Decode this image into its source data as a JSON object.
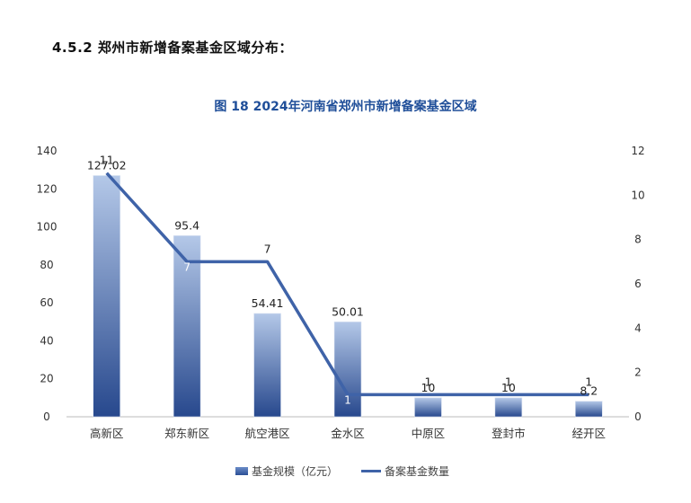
{
  "heading": "4.5.2  郑州市新增备案基金区域分布：",
  "chart_data": {
    "type": "bar",
    "title": "图 18  2024年河南省郑州市新增备案基金区域",
    "categories": [
      "高新区",
      "郑东新区",
      "航空港区",
      "金水区",
      "中原区",
      "登封市",
      "经开区"
    ],
    "series": [
      {
        "name": "基金规模（亿元）",
        "type": "bar",
        "axis": "left",
        "values": [
          127.02,
          95.4,
          54.41,
          50.01,
          10,
          10,
          8.2
        ],
        "labels": [
          "127.02",
          "95.4",
          "54.41",
          "50.01",
          "10",
          "10",
          "8.2"
        ]
      },
      {
        "name": "备案基金数量",
        "type": "line",
        "axis": "right",
        "values": [
          11,
          7,
          7,
          1,
          1,
          1,
          1
        ],
        "labels": [
          "11",
          "7",
          "7",
          "1",
          "1",
          "1",
          "1"
        ]
      }
    ],
    "y_left": {
      "min": 0,
      "max": 140,
      "ticks": [
        "0",
        "20",
        "40",
        "60",
        "80",
        "100",
        "120",
        "140"
      ]
    },
    "y_right": {
      "min": 0,
      "max": 12,
      "ticks": [
        "0",
        "2",
        "4",
        "6",
        "8",
        "10",
        "12"
      ]
    },
    "legend_position": "bottom",
    "colors": {
      "bar_top": "#a9bfe3",
      "bar_bottom": "#27488d",
      "line": "#3f63a8",
      "title": "#1f4e99"
    }
  }
}
